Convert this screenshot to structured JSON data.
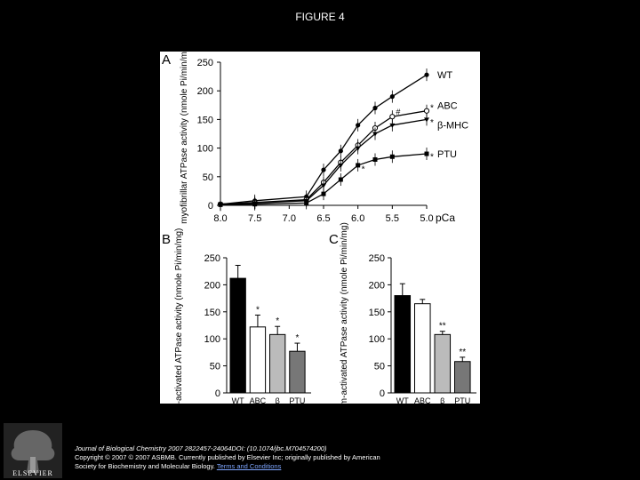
{
  "page_title": "FIGURE 4",
  "footer": {
    "citation": "Journal of Biological Chemistry 2007 2822457-24064DOI: (10.1074/jbc.M704574200)",
    "copyright": "Copyright © 2007 © 2007 ASBMB. Currently published by Elsevier Inc; originally published by American",
    "copyright2": "Society for Biochemistry and Molecular Biology.",
    "link_text": "Terms and Conditions"
  },
  "logo_text": "ELSEVIER",
  "chart_data": [
    {
      "panel": "A",
      "type": "line",
      "xlabel": "pCa",
      "ylabel": "myofibrillar ATPase activity (nmole Pi/min/mg)",
      "xlim": [
        8.0,
        5.0
      ],
      "ylim": [
        0,
        250
      ],
      "x_ticks": [
        "8.0",
        "7.0",
        "7.5",
        "6.5",
        "6.0",
        "5.5",
        "5.0"
      ],
      "x_tick_values": [
        8.0,
        7.0,
        7.5,
        6.5,
        6.0,
        5.5,
        5.0
      ],
      "y_ticks": [
        "0",
        "50",
        "100",
        "150",
        "200",
        "250"
      ],
      "x": [
        8.0,
        7.5,
        6.75,
        6.5,
        6.25,
        6.0,
        5.75,
        5.5,
        5.0
      ],
      "series": [
        {
          "name": "WT",
          "values": [
            2,
            8,
            15,
            62,
            95,
            140,
            170,
            190,
            228
          ]
        },
        {
          "name": "ABC",
          "values": [
            2,
            5,
            10,
            40,
            75,
            105,
            135,
            155,
            165
          ]
        },
        {
          "name": "β-MHC",
          "values": [
            2,
            4,
            8,
            35,
            70,
            100,
            125,
            140,
            150
          ]
        },
        {
          "name": "PTU",
          "values": [
            1,
            2,
            4,
            20,
            45,
            70,
            80,
            85,
            90
          ]
        }
      ],
      "annotations": [
        "*",
        "#",
        "*",
        "*",
        "*"
      ]
    },
    {
      "panel": "B",
      "type": "bar",
      "ylabel": "actin-activated ATPase activity (nmole Pi/min/mg)",
      "ylim": [
        0,
        250
      ],
      "y_ticks": [
        "0",
        "50",
        "100",
        "150",
        "200",
        "250"
      ],
      "categories": [
        "WT",
        "ABC",
        "β",
        "PTU"
      ],
      "values": [
        212,
        122,
        108,
        77
      ],
      "errors": [
        24,
        22,
        15,
        15
      ],
      "fills": [
        "#000000",
        "#ffffff",
        "#bbbbbb",
        "#777777"
      ],
      "annotations": [
        "",
        "*",
        "*",
        "*"
      ]
    },
    {
      "panel": "C",
      "type": "bar",
      "ylabel": "calcium-activated ATPase activity (nmole Pi/min/mg)",
      "ylim": [
        0,
        250
      ],
      "y_ticks": [
        "0",
        "50",
        "100",
        "150",
        "200",
        "250"
      ],
      "categories": [
        "WT",
        "ABC",
        "β",
        "PTU"
      ],
      "values": [
        180,
        165,
        108,
        58
      ],
      "errors": [
        22,
        8,
        6,
        8
      ],
      "fills": [
        "#000000",
        "#ffffff",
        "#bbbbbb",
        "#777777"
      ],
      "annotations": [
        "",
        "",
        "**",
        "**"
      ]
    }
  ]
}
